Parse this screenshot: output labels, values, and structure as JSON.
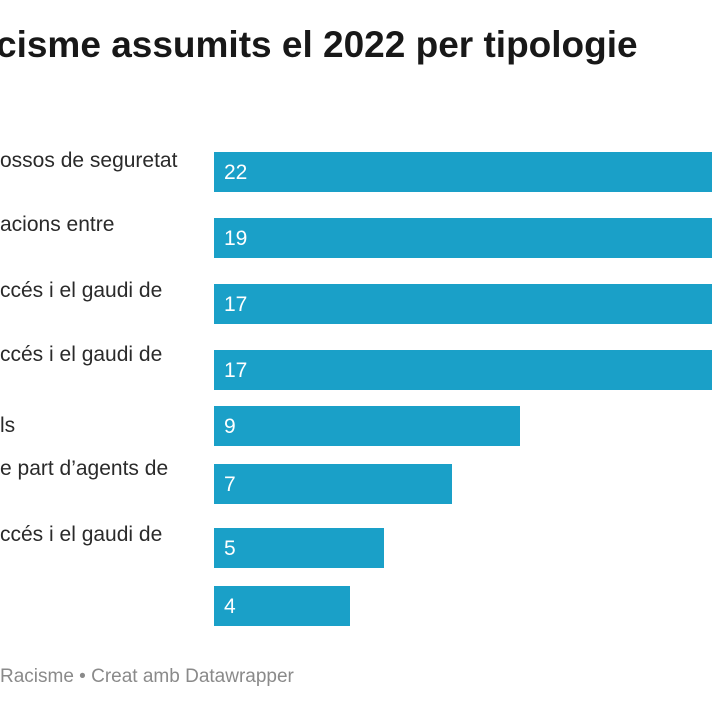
{
  "chart_data": {
    "type": "bar",
    "title": "cisme assumits el 2022 per tipologie",
    "categories": [
      "ossos de seguretat",
      "acions entre",
      "ccés i el gaudi de",
      "ccés i el gaudi de",
      "ls",
      "e part d’agents de",
      "ccés i el gaudi de",
      ""
    ],
    "values": [
      22,
      19,
      17,
      17,
      9,
      7,
      5,
      4
    ],
    "bar_color": "#1aa0c8",
    "orientation": "horizontal",
    "grid": false
  },
  "footer": {
    "source": "Racisme • Creat amb Datawrapper"
  }
}
